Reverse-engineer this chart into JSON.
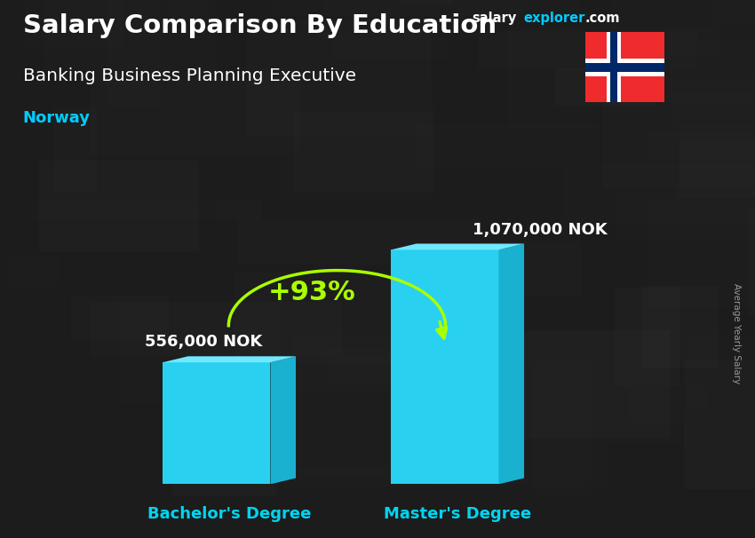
{
  "title1": "Salary Comparison By Education",
  "subtitle": "Banking Business Planning Executive",
  "country": "Norway",
  "categories": [
    "Bachelor's Degree",
    "Master's Degree"
  ],
  "values": [
    556000,
    1070000
  ],
  "value_labels": [
    "556,000 NOK",
    "1,070,000 NOK"
  ],
  "bar_face_color": "#29d0f0",
  "bar_side_color": "#1ab0d0",
  "bar_top_color": "#70e8ff",
  "pct_change": "+93%",
  "pct_color": "#aaff00",
  "title_color": "#ffffff",
  "subtitle_color": "#ffffff",
  "country_color": "#00ccff",
  "ylabel_text": "Average Yearly Salary",
  "bg_color": "#1c1c1c",
  "value_label_color": "#ffffff",
  "xlabel_color": "#00d4f0",
  "brand_color_salary": "#ffffff",
  "brand_color_explorer": "#00ccff",
  "brand_color_com": "#ffffff",
  "side_label_color": "#999999",
  "ylim_max": 1400000,
  "x_positions": [
    0.27,
    0.63
  ],
  "bar_width": 0.17,
  "bar_depth_ratio": 0.04
}
